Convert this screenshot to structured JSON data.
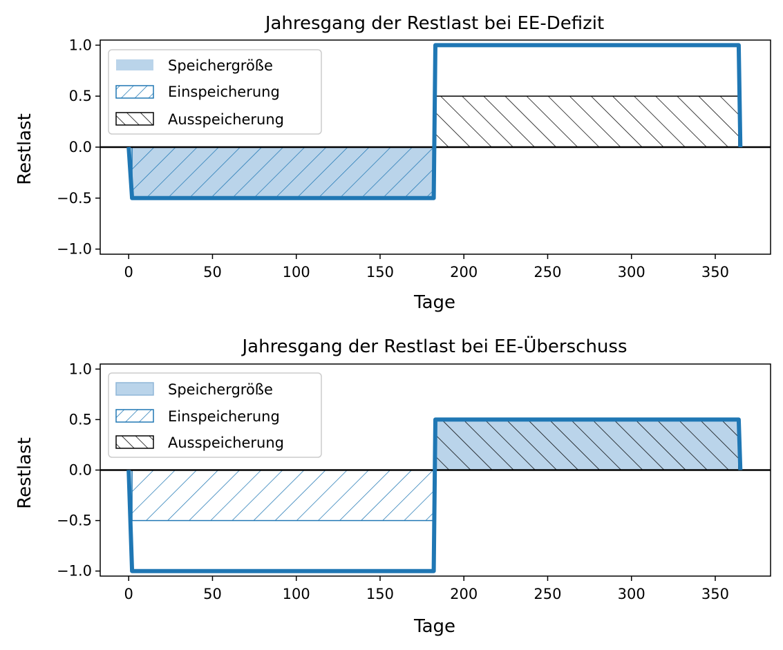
{
  "colors": {
    "line": "#1f77b4",
    "storage_fill": "#bad4ea",
    "axis": "#000000",
    "hatch_charge": "#1f77b4",
    "hatch_discharge": "#000000"
  },
  "chart_data": [
    {
      "type": "line",
      "title": "Jahresgang der Restlast bei EE-Defizit",
      "xlabel": "Tage",
      "ylabel": "Restlast",
      "xlim": [
        -17,
        383
      ],
      "ylim": [
        -1.05,
        1.05
      ],
      "xticks": [
        0,
        50,
        100,
        150,
        200,
        250,
        300,
        350
      ],
      "xtick_labels": [
        "0",
        "50",
        "100",
        "150",
        "200",
        "250",
        "300",
        "350"
      ],
      "yticks": [
        1.0,
        0.5,
        0.0,
        -0.5,
        -1.0
      ],
      "ytick_labels": [
        "1.0",
        "0.5",
        "0.0",
        "−0.5",
        "−1.0"
      ],
      "legend_position": "top-left",
      "legend": [
        "Speichergröße",
        "Einspeicherung",
        "Ausspeicherung"
      ],
      "series": [
        {
          "name": "Restlast",
          "x": [
            0,
            2,
            182,
            183,
            364,
            365
          ],
          "y": [
            0,
            -0.5,
            -0.5,
            1.0,
            1.0,
            0
          ]
        }
      ],
      "areas": [
        {
          "kind": "storage",
          "x_start": 2,
          "x_end": 182,
          "y_start": -0.5,
          "y_end": 0
        },
        {
          "kind": "charge",
          "x_start": 2,
          "x_end": 182,
          "y_start": -0.5,
          "y_end": 0
        },
        {
          "kind": "discharge",
          "x_start": 183,
          "x_end": 364,
          "y_start": 0,
          "y_end": 0.5
        }
      ]
    },
    {
      "type": "line",
      "title": "Jahresgang der Restlast bei EE-Überschuss",
      "xlabel": "Tage",
      "ylabel": "Restlast",
      "xlim": [
        -17,
        383
      ],
      "ylim": [
        -1.05,
        1.05
      ],
      "xticks": [
        0,
        50,
        100,
        150,
        200,
        250,
        300,
        350
      ],
      "xtick_labels": [
        "0",
        "50",
        "100",
        "150",
        "200",
        "250",
        "300",
        "350"
      ],
      "yticks": [
        1.0,
        0.5,
        0.0,
        -0.5,
        -1.0
      ],
      "ytick_labels": [
        "1.0",
        "0.5",
        "0.0",
        "−0.5",
        "−1.0"
      ],
      "legend_position": "top-left",
      "legend": [
        "Speichergröße",
        "Einspeicherung",
        "Ausspeicherung"
      ],
      "series": [
        {
          "name": "Restlast",
          "x": [
            0,
            2,
            182,
            183,
            364,
            365
          ],
          "y": [
            0,
            -1.0,
            -1.0,
            0.5,
            0.5,
            0
          ]
        }
      ],
      "areas": [
        {
          "kind": "charge",
          "x_start": 2,
          "x_end": 182,
          "y_start": -0.5,
          "y_end": 0
        },
        {
          "kind": "storage",
          "x_start": 183,
          "x_end": 364,
          "y_start": 0,
          "y_end": 0.5
        },
        {
          "kind": "discharge",
          "x_start": 183,
          "x_end": 364,
          "y_start": 0,
          "y_end": 0.5
        }
      ]
    }
  ]
}
